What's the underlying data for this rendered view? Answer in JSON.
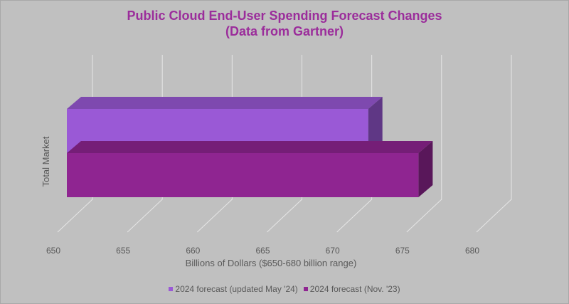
{
  "chart_data": {
    "type": "bar",
    "orientation": "horizontal",
    "style": "3d-clustered",
    "title_lines": [
      "Public Cloud End-User Spending Forecast Changes",
      "(Data from Gartner)"
    ],
    "categories": [
      "Total Market"
    ],
    "ylabel": "Total Market",
    "xlabel": "Billions of Dollars ($650-680 billion range)",
    "xlim": [
      650,
      680
    ],
    "xticks": [
      650,
      655,
      660,
      665,
      670,
      675,
      680
    ],
    "grid": true,
    "legend_position": "bottom",
    "series": [
      {
        "name": "2024 forecast (updated May '24)",
        "values": [
          675.4
        ],
        "color": "#9a59d6"
      },
      {
        "name": "2024 forecast (Nov. '23)",
        "values": [
          679.0
        ],
        "color": "#8f2591"
      }
    ]
  }
}
